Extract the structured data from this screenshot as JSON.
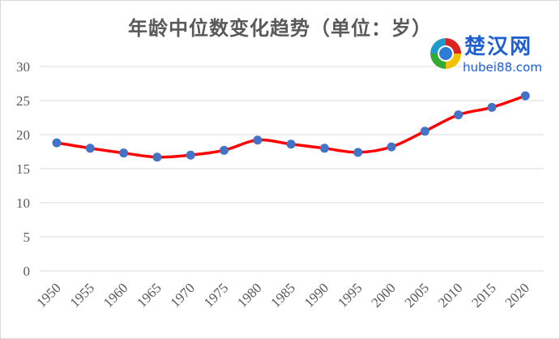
{
  "chart_data": {
    "type": "line",
    "title": "年龄中位数变化趋势（单位：岁）",
    "xlabel": "",
    "ylabel": "",
    "categories": [
      "1950",
      "1955",
      "1960",
      "1965",
      "1970",
      "1975",
      "1980",
      "1985",
      "1990",
      "1995",
      "2000",
      "2005",
      "2010",
      "2015",
      "2020"
    ],
    "series": [
      {
        "name": "年龄中位数",
        "values": [
          18.8,
          18.0,
          17.3,
          16.7,
          17.0,
          17.7,
          19.2,
          18.6,
          18.0,
          17.4,
          18.2,
          20.5,
          22.9,
          24.0,
          25.7
        ],
        "line_color": "#FF0000",
        "marker_color": "#4472C4",
        "smooth": true
      }
    ],
    "ylim": [
      0,
      30
    ],
    "yticks": [
      0,
      5,
      10,
      15,
      20,
      25,
      30
    ],
    "grid": true,
    "legend": "none"
  },
  "watermark": {
    "cn": "楚汉网",
    "en": "hubei88.com"
  }
}
